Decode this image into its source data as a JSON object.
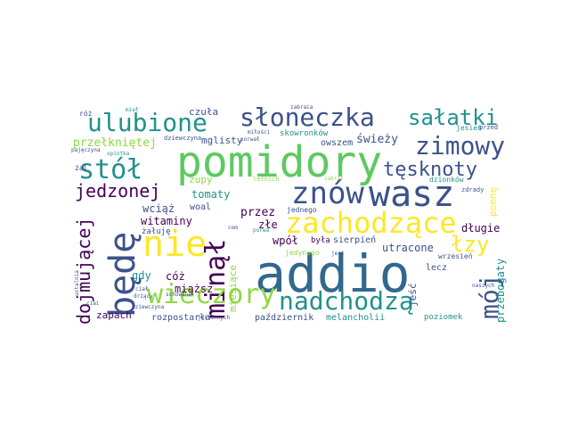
{
  "palette": {
    "background": "#ffffff",
    "dark_purple": "#440154",
    "indigo": "#3b528b",
    "blue": "#31688e",
    "teal": "#21918c",
    "green": "#35b779",
    "light_green": "#5ec962",
    "yellow_green": "#90d743",
    "yellow": "#fde725"
  },
  "words": {
    "addio": "addio",
    "pomidory": "pomidory",
    "wasz": "wasz",
    "bede": "będę",
    "znow": "znów",
    "sloneczka": "słoneczka",
    "ulubione": "ulubione",
    "zimowy": "zimowy",
    "salatki": "sałatki",
    "stol": "stół",
    "nie": "nie",
    "zachodzace": "zachodzące",
    "nadchodza": "nadchodzą",
    "mineal": "minął",
    "wieczory": "wieczory",
    "moj": "mój",
    "tesknoty": "tęsknoty",
    "jedzonej": "jedzonej",
    "dojmujacej": "dojmującej",
    "lzy": "łzy",
    "czula": "czuła",
    "przelknietej": "przełkniętej",
    "mglisty": "mglisty",
    "swiezy": "świeży",
    "skowronkow": "skowronków",
    "owszem": "owszem",
    "tomaty": "tomaty",
    "zupy": "zupy",
    "wciaz": "wciąż",
    "woal": "woal",
    "witaminy": "witaminy",
    "zaluje": "żałuję",
    "przez": "przez",
    "jednego": "jednego",
    "zle": "złe",
    "wpol": "wpół",
    "byla": "była",
    "sierpien": "sierpień",
    "utracone": "utracone",
    "dlugie": "długie",
    "pomnie": "pomnę",
    "coz": "cóż",
    "miazsz": "miąższ",
    "gdy": "gdy",
    "miesiace": "miesiące",
    "zapach": "zapach",
    "rozpostarla": "rozpostarła",
    "pazdziernik": "październik",
    "melancholii": "melancholii",
    "poziomek": "poziomek",
    "jesc": "jeść",
    "lecz": "lecz",
    "przebogaty": "przebogaty",
    "wrzesien": "wrzesień",
    "jesien": "jesień",
    "przed": "przed",
    "dzionkow": "dzionków",
    "zdrady": "zdrady",
    "naszych": "naszych",
    "roz": "róż",
    "zal": "żal",
    "dziewczyna": "dziewczyna",
    "opiotka": "opiotka",
    "pajeczyna": "pajęczyna",
    "ciai": "ciai",
    "zabraia": "zabraia",
    "letnich": "letnich",
    "porwa": "porwa",
    "jedynego": "jedynego",
    "jest": "jest",
    "schowane": "schowane",
    "mial": "miał",
    "com": "com",
    "zabral": "zabrał",
    "ustalnia": "ustalnia",
    "miliosci": "miłości",
    "ciai2": "ciał",
    "porwal": "porwał",
    "zdrazy": "drżący",
    "jesiennych": "jesiennych",
    "dziewczyna2": "dziewczyna"
  }
}
